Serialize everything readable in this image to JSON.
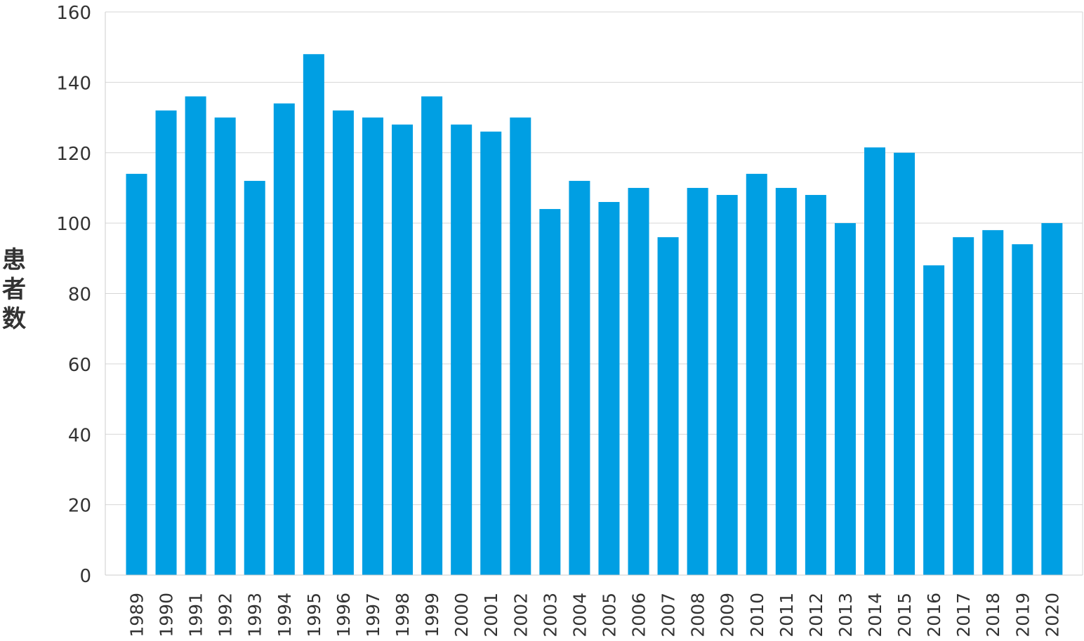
{
  "chart_data": {
    "type": "bar",
    "title": "",
    "xlabel": "",
    "ylabel_chars": [
      "患",
      "者",
      "数"
    ],
    "ylim": [
      0,
      160
    ],
    "yticks": [
      0,
      20,
      40,
      60,
      80,
      100,
      120,
      140,
      160
    ],
    "grid": true,
    "bar_color": "#009fe3",
    "categories": [
      "1989",
      "1990",
      "1991",
      "1992",
      "1993",
      "1994",
      "1995",
      "1996",
      "1997",
      "1998",
      "1999",
      "2000",
      "2001",
      "2002",
      "2003",
      "2004",
      "2005",
      "2006",
      "2007",
      "2008",
      "2009",
      "2010",
      "2011",
      "2012",
      "2013",
      "2014",
      "2015",
      "2016",
      "2017",
      "2018",
      "2019",
      "2020"
    ],
    "values": [
      114,
      132,
      136,
      130,
      112,
      134,
      148,
      132,
      130,
      128,
      136,
      128,
      126,
      130,
      104,
      112,
      106,
      110,
      96,
      110,
      108,
      114,
      110,
      108,
      100,
      121.5,
      120,
      88,
      96,
      98,
      94,
      100
    ]
  }
}
